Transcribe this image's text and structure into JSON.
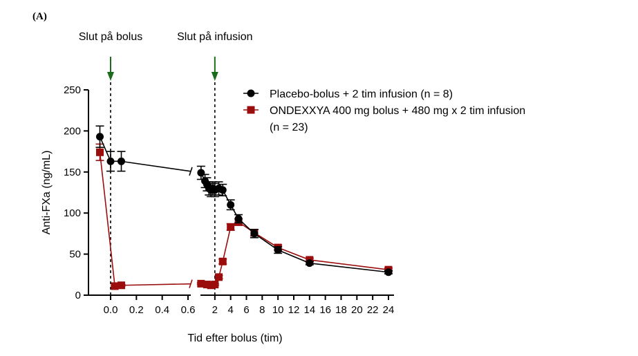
{
  "panel_label": "(A)",
  "colors": {
    "placebo": "#000000",
    "ondexxya": "#9b0d0d",
    "arrow": "#1a6b1a"
  },
  "chart_data": {
    "type": "line",
    "title": "",
    "xlabel": "Tid efter bolus (tim)",
    "ylabel": "Anti-FXa (ng/mL)",
    "ylim": [
      0,
      250
    ],
    "yticks": [
      0,
      50,
      100,
      150,
      200,
      250
    ],
    "broken_x_axis": true,
    "x_segment_1": {
      "range": [
        -0.1,
        0.65
      ],
      "ticks": [
        0.0,
        0.2,
        0.4,
        0.6
      ],
      "tick_labels": [
        "0.0",
        "0.2",
        "0.4",
        "0.6"
      ]
    },
    "x_segment_2": {
      "range": [
        0,
        24.5
      ],
      "ticks": [
        2,
        4,
        6,
        8,
        10,
        12,
        14,
        16,
        18,
        20,
        22,
        24
      ],
      "tick_labels": [
        "2",
        "4",
        "6",
        "8",
        "10",
        "12",
        "14",
        "16",
        "18",
        "20",
        "22",
        "24"
      ]
    },
    "annotations": [
      {
        "text": "Slut på bolus",
        "segment": 1,
        "x": 0.0
      },
      {
        "text": "Slut på infusion",
        "segment": 2,
        "x": 2.0
      }
    ],
    "legend_position": "top-right",
    "series": [
      {
        "name": "Placebo-bolus + 2 tim infusion (n = 8)",
        "marker": "circle",
        "segment_1": [
          {
            "x": -0.083,
            "y": 193,
            "err": 13
          },
          {
            "x": 0.0,
            "y": 163,
            "err": 12
          },
          {
            "x": 0.083,
            "y": 163,
            "err": 12
          }
        ],
        "segment_2": [
          {
            "x": 0.25,
            "y": 149,
            "err": 8
          },
          {
            "x": 0.75,
            "y": 139,
            "err": 8
          },
          {
            "x": 1.0,
            "y": 135,
            "err": 8
          },
          {
            "x": 1.25,
            "y": 130,
            "err": 8
          },
          {
            "x": 1.5,
            "y": 128,
            "err": 8
          },
          {
            "x": 1.75,
            "y": 130,
            "err": 8
          },
          {
            "x": 2.0,
            "y": 128,
            "err": 8
          },
          {
            "x": 2.5,
            "y": 130,
            "err": 8
          },
          {
            "x": 3.0,
            "y": 128,
            "err": 7
          },
          {
            "x": 4.0,
            "y": 110,
            "err": 6
          },
          {
            "x": 5.0,
            "y": 93,
            "err": 5
          },
          {
            "x": 7.0,
            "y": 75,
            "err": 5
          },
          {
            "x": 10.0,
            "y": 55,
            "err": 4
          },
          {
            "x": 14.0,
            "y": 39,
            "err": 2
          },
          {
            "x": 24.0,
            "y": 28,
            "err": 2
          }
        ]
      },
      {
        "name": "ONDEXXYA 400 mg bolus + 480 mg x 2 tim infusion (n = 23)",
        "marker": "square",
        "segment_1": [
          {
            "x": -0.083,
            "y": 174,
            "err": 10
          },
          {
            "x": 0.033,
            "y": 11,
            "err": 1
          },
          {
            "x": 0.083,
            "y": 12,
            "err": 1
          }
        ],
        "segment_2": [
          {
            "x": 0.25,
            "y": 14,
            "err": 1
          },
          {
            "x": 1.0,
            "y": 13,
            "err": 1
          },
          {
            "x": 1.5,
            "y": 12,
            "err": 1
          },
          {
            "x": 2.0,
            "y": 13,
            "err": 1
          },
          {
            "x": 2.5,
            "y": 22,
            "err": 2
          },
          {
            "x": 3.0,
            "y": 41,
            "err": 3
          },
          {
            "x": 4.0,
            "y": 83,
            "err": 4
          },
          {
            "x": 5.0,
            "y": 89,
            "err": 4
          },
          {
            "x": 7.0,
            "y": 76,
            "err": 4
          },
          {
            "x": 10.0,
            "y": 58,
            "err": 3
          },
          {
            "x": 14.0,
            "y": 43,
            "err": 2
          },
          {
            "x": 24.0,
            "y": 31,
            "err": 2
          }
        ]
      }
    ]
  }
}
